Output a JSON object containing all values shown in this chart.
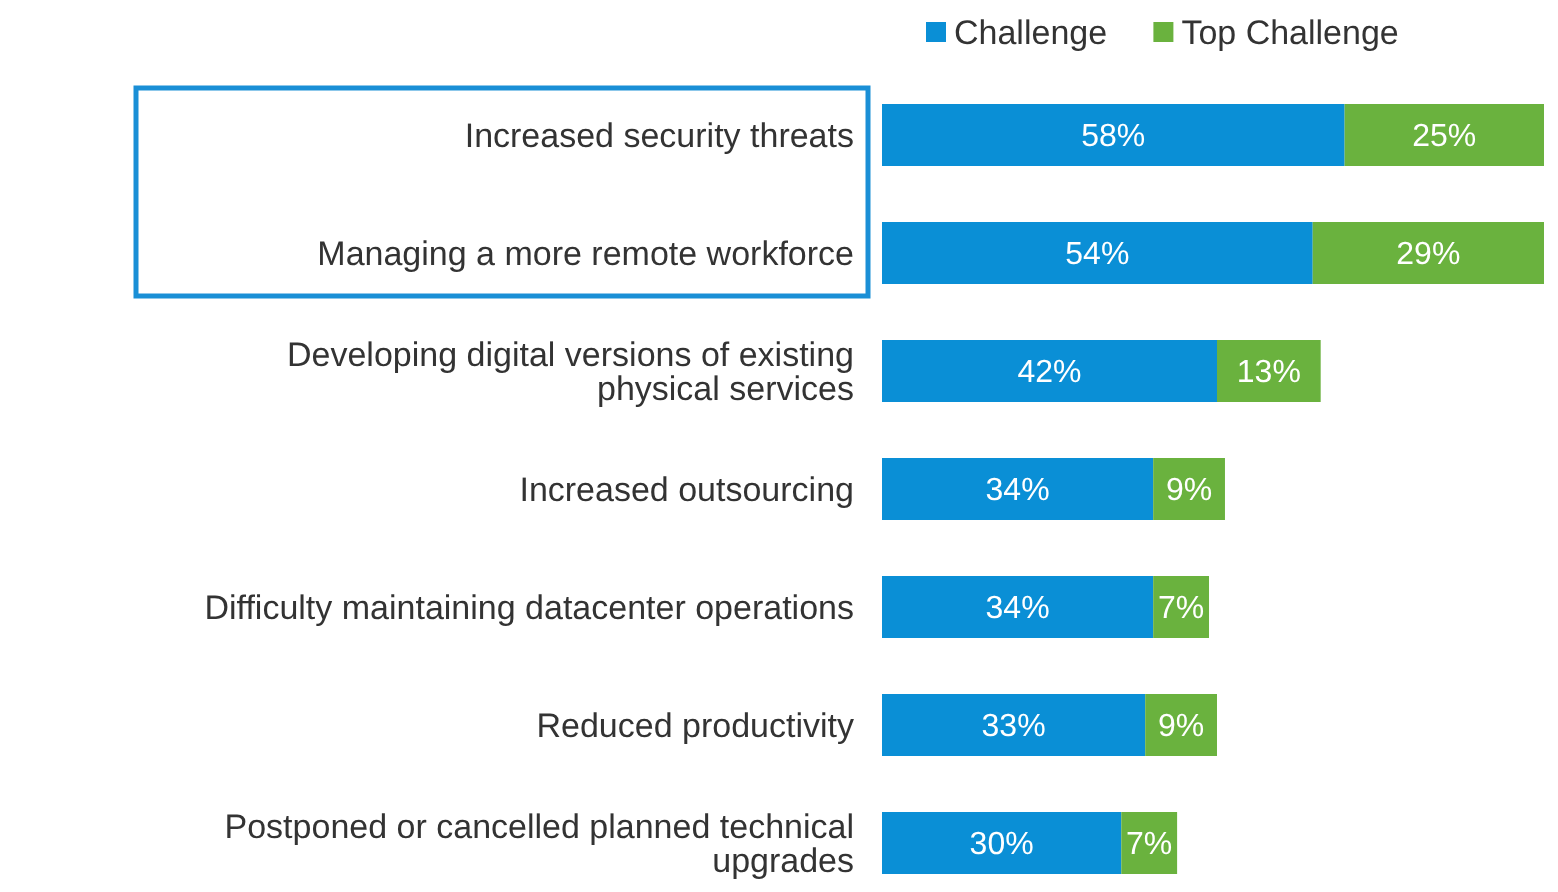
{
  "chart_data": {
    "type": "bar",
    "orientation": "horizontal",
    "stacked": true,
    "legend": "top",
    "categories": [
      "Increased security threats",
      "Managing a more remote workforce",
      "Developing digital versions of existing physical services",
      "Increased outsourcing",
      "Difficulty maintaining datacenter operations",
      "Reduced productivity",
      "Postponed or cancelled planned technical upgrades"
    ],
    "series": [
      {
        "name": "Challenge",
        "color": "#0a8fd6",
        "values": [
          58,
          54,
          42,
          34,
          34,
          33,
          30
        ],
        "value_labels": [
          "58%",
          "54%",
          "42%",
          "34%",
          "34%",
          "33%",
          "30%"
        ]
      },
      {
        "name": "Top Challenge",
        "color": "#6ab23e",
        "values": [
          25,
          29,
          13,
          9,
          7,
          9,
          7
        ],
        "value_labels": [
          "25%",
          "29%",
          "13%",
          "9%",
          "7%",
          "9%",
          "7%"
        ]
      }
    ]
  }
}
